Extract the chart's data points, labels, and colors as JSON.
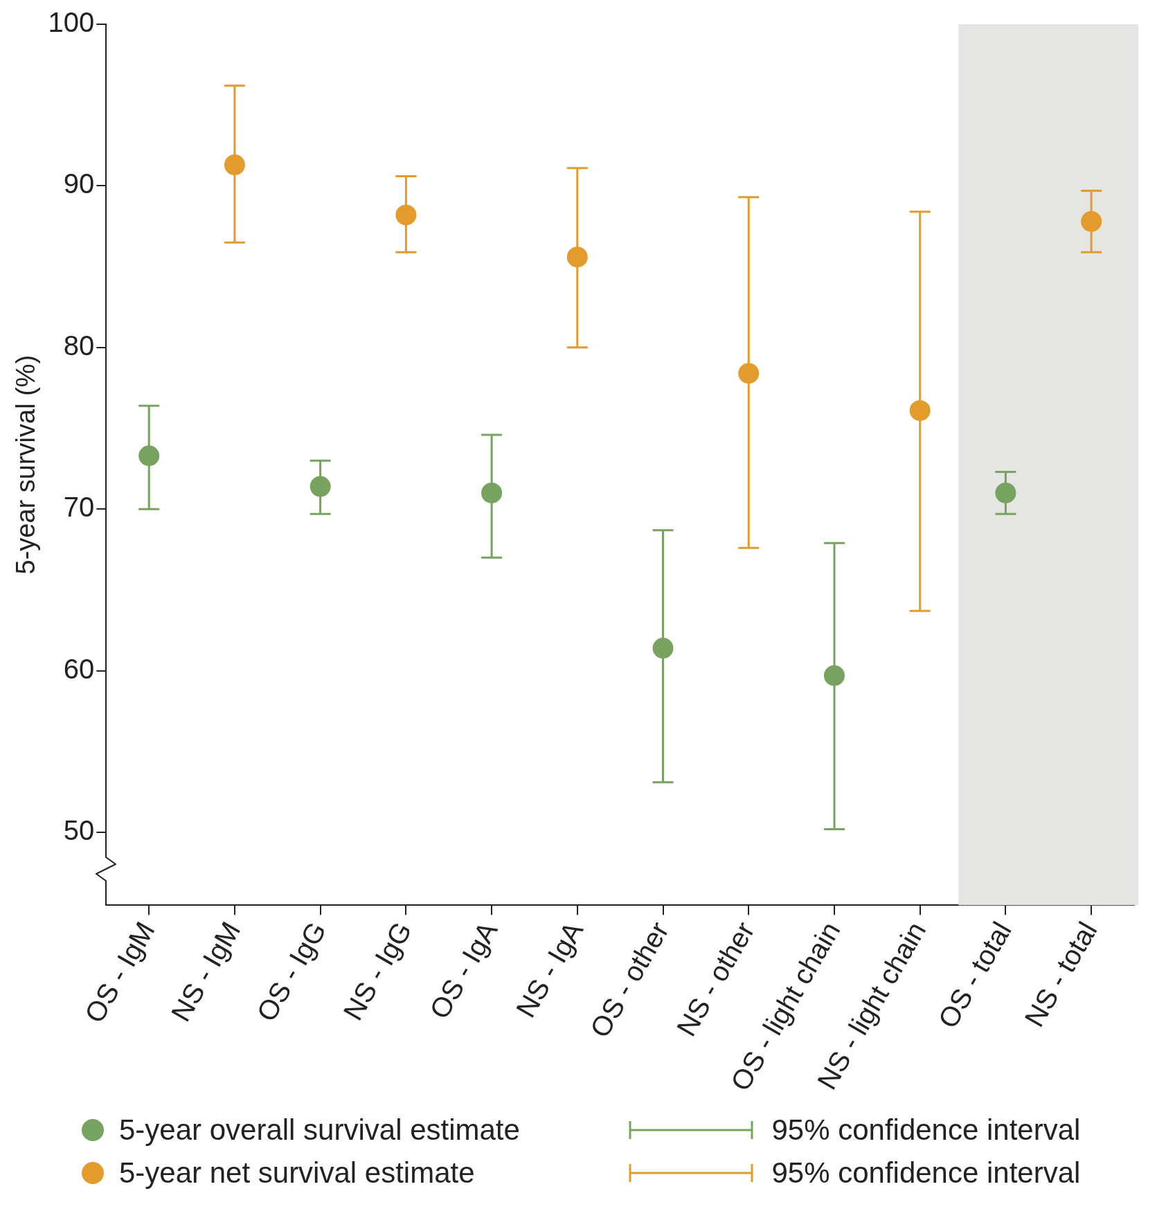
{
  "chart_data": {
    "type": "scatter",
    "ylabel": "5-year survival (%)",
    "categories": [
      "OS - IgM",
      "NS - IgM",
      "OS - IgG",
      "NS - IgG",
      "OS - IgA",
      "NS - IgA",
      "OS - other",
      "NS - other",
      "OS - light chain",
      "NS - light chain",
      "OS - total",
      "NS - total"
    ],
    "series": [
      {
        "name": "5-year overall survival estimate",
        "color": "#77a25f",
        "values": [
          73.3,
          null,
          71.4,
          null,
          71.0,
          null,
          61.4,
          null,
          59.7,
          null,
          71.0,
          null
        ],
        "errors": [
          [
            70.0,
            76.4
          ],
          null,
          [
            69.7,
            73.0
          ],
          null,
          [
            67.0,
            74.6
          ],
          null,
          [
            53.1,
            68.7
          ],
          null,
          [
            50.2,
            67.9
          ],
          null,
          [
            69.7,
            72.3
          ],
          null
        ]
      },
      {
        "name": "5-year net survival estimate",
        "color": "#e39b2b",
        "values": [
          null,
          91.3,
          null,
          88.2,
          null,
          85.6,
          null,
          78.4,
          null,
          76.1,
          null,
          87.8
        ],
        "errors": [
          null,
          [
            86.5,
            96.2
          ],
          null,
          [
            85.9,
            90.6
          ],
          null,
          [
            80.0,
            91.1
          ],
          null,
          [
            67.6,
            89.3
          ],
          null,
          [
            63.7,
            88.4
          ],
          null,
          [
            85.9,
            89.7
          ]
        ]
      }
    ],
    "ylim": [
      45.5,
      100
    ],
    "yticks": [
      50,
      60,
      70,
      80,
      90,
      100
    ],
    "grid": false,
    "marker": "circle",
    "legend": "bottom",
    "bands": [
      {
        "axis": "x",
        "from": "OS - total",
        "to": "NS - total",
        "color": "#e5e5e4"
      }
    ],
    "annotations": [
      "95% confidence interval",
      "95% confidence interval"
    ]
  }
}
